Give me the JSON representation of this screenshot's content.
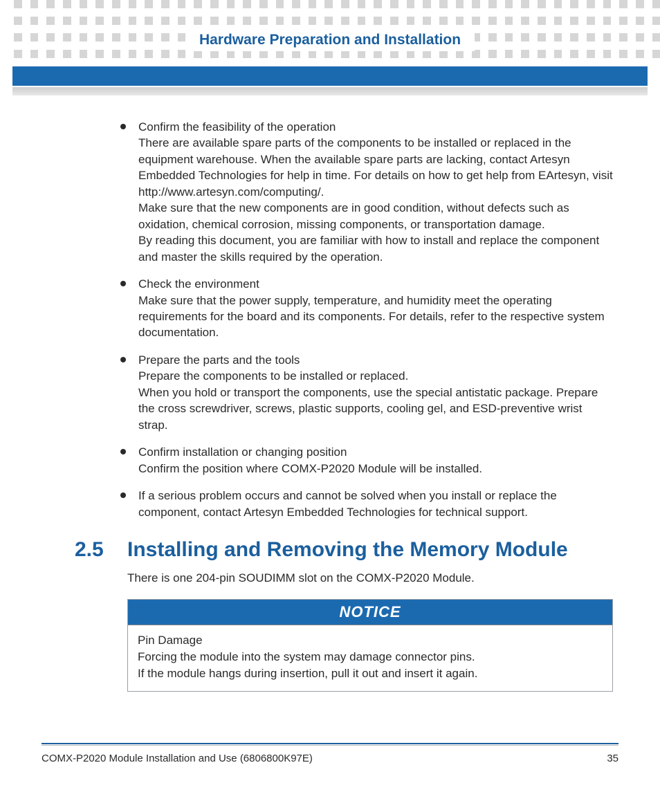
{
  "colors": {
    "brand_blue": "#1b5f9e",
    "bar_blue": "#1b6ab0",
    "dot_gray": "#d6d6d6",
    "text": "#2a2a2a",
    "rule_gray": "#b8b8b8",
    "box_border": "#9aa0a6",
    "white": "#ffffff"
  },
  "header": {
    "chapter_title": "Hardware Preparation and Installation"
  },
  "bullets": [
    "Confirm the feasibility of the operation\nThere are available spare parts of the components to be installed or replaced in the equipment warehouse. When the available spare parts are lacking, contact Artesyn Embedded Technologies for help in time. For details on how to get help from EArtesyn, visit http://www.artesyn.com/computing/.\nMake sure that the new components are in good condition, without defects such as oxidation, chemical corrosion, missing components, or transportation damage.\nBy reading this document, you are familiar with how to install and replace the component and master the skills required by the operation.",
    "Check the environment\nMake sure that the power supply, temperature, and humidity meet the operating requirements for the board and its components. For details, refer to the respective system documentation.",
    "Prepare the parts and the tools\nPrepare the components to be installed or replaced.\nWhen you hold or transport the components, use the special antistatic package. Prepare the cross screwdriver, screws, plastic supports, cooling gel, and ESD-preventive wrist strap.",
    "Confirm installation or changing position\nConfirm the position where COMX-P2020 Module will be installed.",
    "If a serious problem occurs and cannot be solved when you install or replace the component, contact Artesyn Embedded Technologies for technical support."
  ],
  "section": {
    "number": "2.5",
    "title": "Installing and Removing the Memory Module",
    "intro": "There is one  204-pin SOUDIMM slot on the COMX-P2020 Module."
  },
  "notice": {
    "label": "NOTICE",
    "body": "Pin Damage\nForcing the module into the system may damage connector pins.\nIf the module hangs during insertion, pull it out and insert it again."
  },
  "footer": {
    "doc": "COMX-P2020 Module Installation and Use (6806800K97E)",
    "page": "35"
  }
}
